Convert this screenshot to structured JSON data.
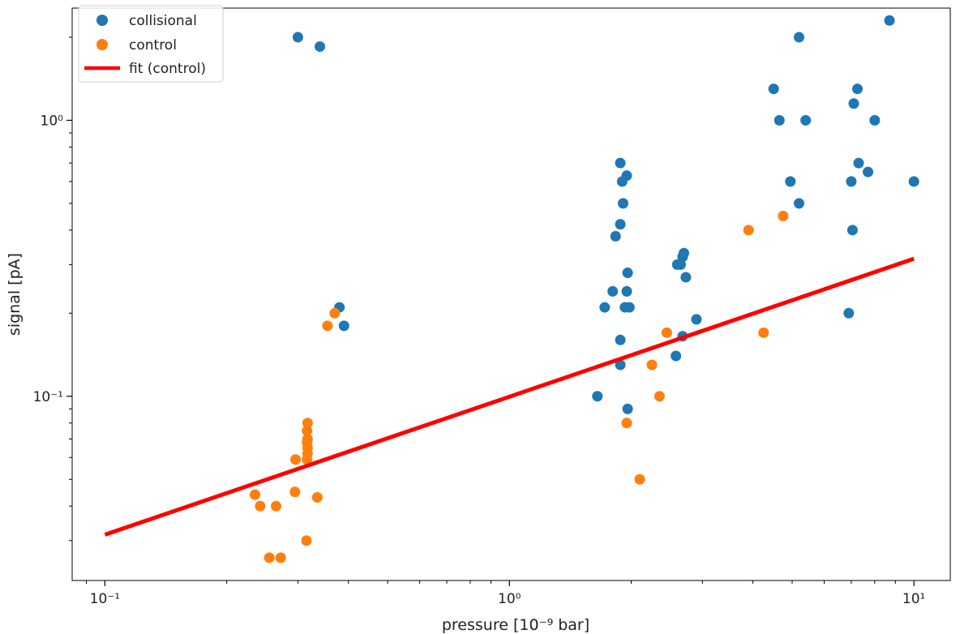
{
  "chart_data": {
    "type": "scatter",
    "title": "",
    "xlabel": "pressure [10⁻⁹ bar]",
    "ylabel": "signal [pA]",
    "xscale": "log",
    "yscale": "log",
    "xlim": [
      0.083,
      12.3
    ],
    "ylim": [
      0.0215,
      2.55
    ],
    "grid": false,
    "legend_position": "top-left",
    "xticks": [
      {
        "value": 0.1,
        "label": "10⁻¹"
      },
      {
        "value": 1,
        "label": "10⁰"
      },
      {
        "value": 10,
        "label": "10¹"
      }
    ],
    "yticks": [
      {
        "value": 0.1,
        "label": "10⁻¹"
      },
      {
        "value": 1,
        "label": "10⁰"
      }
    ],
    "series": [
      {
        "name": "collisional",
        "kind": "scatter",
        "color": "#1f77b4",
        "points": [
          [
            0.3,
            2.0
          ],
          [
            0.34,
            1.85
          ],
          [
            0.38,
            0.21
          ],
          [
            0.39,
            0.18
          ],
          [
            1.65,
            0.1
          ],
          [
            1.72,
            0.21
          ],
          [
            1.8,
            0.24
          ],
          [
            1.83,
            0.38
          ],
          [
            1.88,
            0.42
          ],
          [
            1.88,
            0.7
          ],
          [
            1.9,
            0.6
          ],
          [
            1.91,
            0.5
          ],
          [
            1.95,
            0.63
          ],
          [
            1.96,
            0.28
          ],
          [
            1.95,
            0.24
          ],
          [
            1.93,
            0.21
          ],
          [
            1.98,
            0.21
          ],
          [
            1.88,
            0.16
          ],
          [
            1.88,
            0.13
          ],
          [
            1.96,
            0.09
          ],
          [
            2.6,
            0.3
          ],
          [
            2.65,
            0.3
          ],
          [
            2.68,
            0.32
          ],
          [
            2.7,
            0.33
          ],
          [
            2.73,
            0.27
          ],
          [
            2.68,
            0.165
          ],
          [
            2.58,
            0.14
          ],
          [
            2.9,
            0.19
          ],
          [
            4.5,
            1.3
          ],
          [
            4.65,
            1.0
          ],
          [
            5.2,
            2.0
          ],
          [
            5.4,
            1.0
          ],
          [
            4.95,
            0.6
          ],
          [
            5.2,
            0.5
          ],
          [
            6.9,
            0.2
          ],
          [
            7.05,
            0.4
          ],
          [
            7.0,
            0.6
          ],
          [
            7.1,
            1.15
          ],
          [
            7.25,
            1.3
          ],
          [
            7.3,
            0.7
          ],
          [
            7.7,
            0.65
          ],
          [
            8.0,
            1.0
          ],
          [
            8.7,
            2.3
          ],
          [
            10.0,
            0.6
          ]
        ]
      },
      {
        "name": "control",
        "kind": "scatter",
        "color": "#ff7f0e",
        "points": [
          [
            0.235,
            0.044
          ],
          [
            0.242,
            0.04
          ],
          [
            0.255,
            0.026
          ],
          [
            0.265,
            0.04
          ],
          [
            0.272,
            0.026
          ],
          [
            0.295,
            0.045
          ],
          [
            0.296,
            0.059
          ],
          [
            0.315,
            0.03
          ],
          [
            0.335,
            0.043
          ],
          [
            0.316,
            0.059
          ],
          [
            0.317,
            0.062
          ],
          [
            0.317,
            0.065
          ],
          [
            0.316,
            0.068
          ],
          [
            0.317,
            0.07
          ],
          [
            0.316,
            0.075
          ],
          [
            0.317,
            0.08
          ],
          [
            0.355,
            0.18
          ],
          [
            0.37,
            0.2
          ],
          [
            1.95,
            0.08
          ],
          [
            2.1,
            0.05
          ],
          [
            2.25,
            0.13
          ],
          [
            2.35,
            0.1
          ],
          [
            2.45,
            0.17
          ],
          [
            3.9,
            0.4
          ],
          [
            4.25,
            0.17
          ],
          [
            4.75,
            0.45
          ]
        ]
      },
      {
        "name": "fit (control)",
        "kind": "line",
        "color": "#ff0000",
        "points": [
          [
            0.1,
            0.0315
          ],
          [
            10,
            0.315
          ]
        ]
      }
    ]
  }
}
